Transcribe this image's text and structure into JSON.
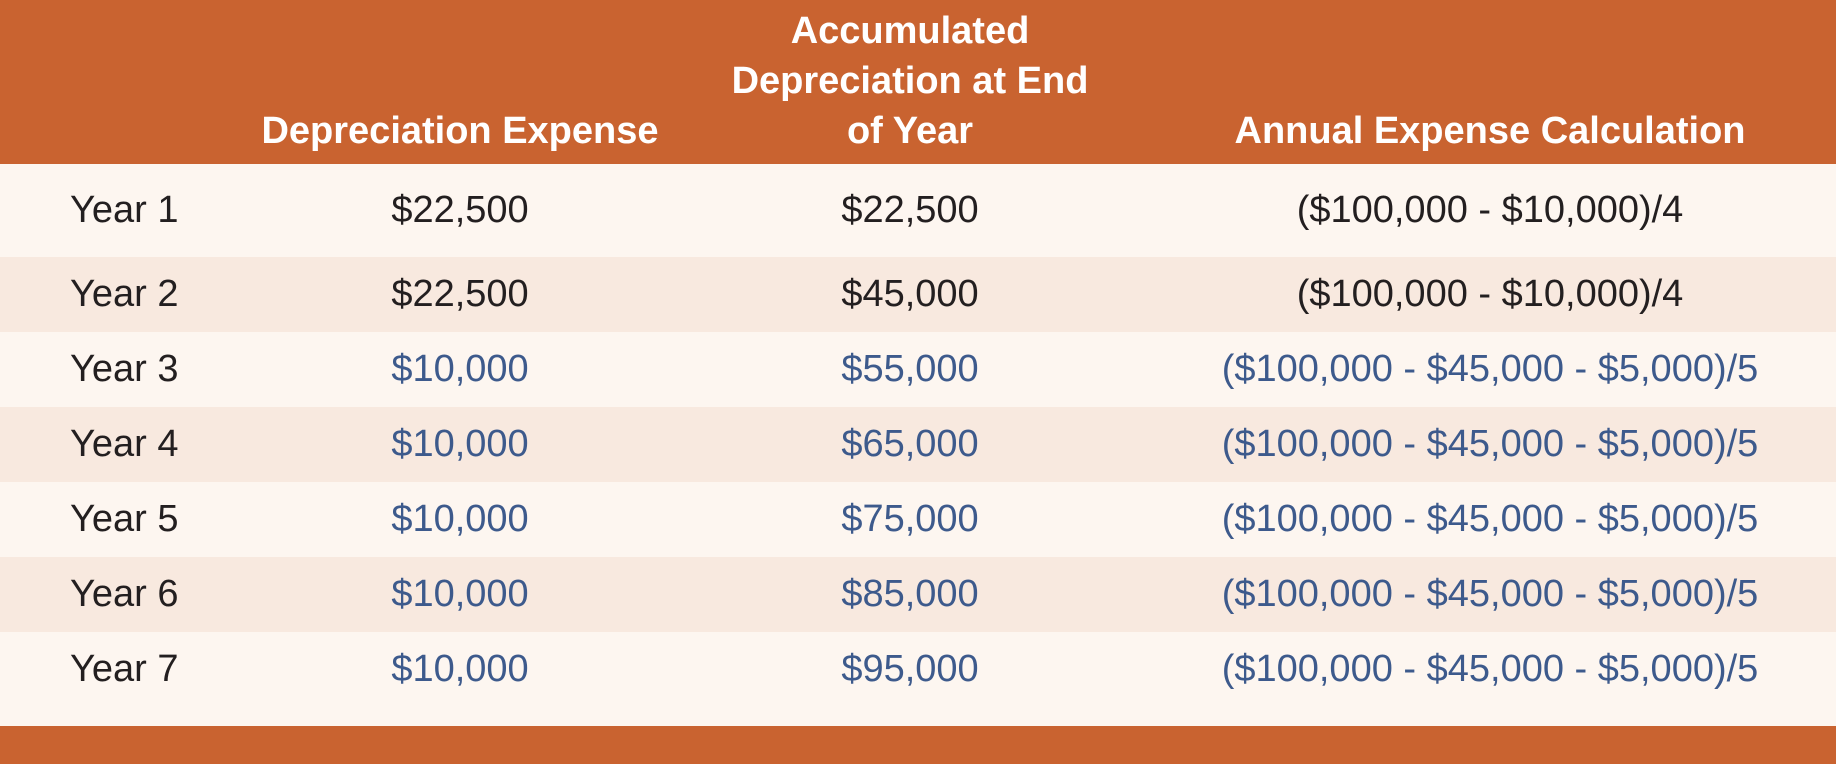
{
  "colors": {
    "header": "#c96330",
    "row_light": "#fdf6f0",
    "row_alt": "#f8e9df",
    "text_dark": "#231f20",
    "text_revised": "#3d5a8c"
  },
  "table": {
    "headers": {
      "year": "",
      "depreciation_expense": "Depreciation Expense",
      "accumulated_line1": "Accumulated",
      "accumulated_line2": "Depreciation at End",
      "accumulated_line3": "of Year",
      "annual_calc": "Annual Expense Calculation"
    },
    "rows": [
      {
        "year": "Year 1",
        "dep": "$22,500",
        "acc": "$22,500",
        "calc": "($100,000 - $10,000)/4"
      },
      {
        "year": "Year 2",
        "dep": "$22,500",
        "acc": "$45,000",
        "calc": "($100,000 - $10,000)/4"
      },
      {
        "year": "Year 3",
        "dep": "$10,000",
        "acc": "$55,000",
        "calc": "($100,000 - $45,000 - $5,000)/5"
      },
      {
        "year": "Year 4",
        "dep": "$10,000",
        "acc": "$65,000",
        "calc": "($100,000 - $45,000 - $5,000)/5"
      },
      {
        "year": "Year 5",
        "dep": "$10,000",
        "acc": "$75,000",
        "calc": "($100,000 - $45,000 - $5,000)/5"
      },
      {
        "year": "Year 6",
        "dep": "$10,000",
        "acc": "$85,000",
        "calc": "($100,000 - $45,000 - $5,000)/5"
      },
      {
        "year": "Year 7",
        "dep": "$10,000",
        "acc": "$95,000",
        "calc": "($100,000 - $45,000 - $5,000)/5"
      }
    ]
  }
}
